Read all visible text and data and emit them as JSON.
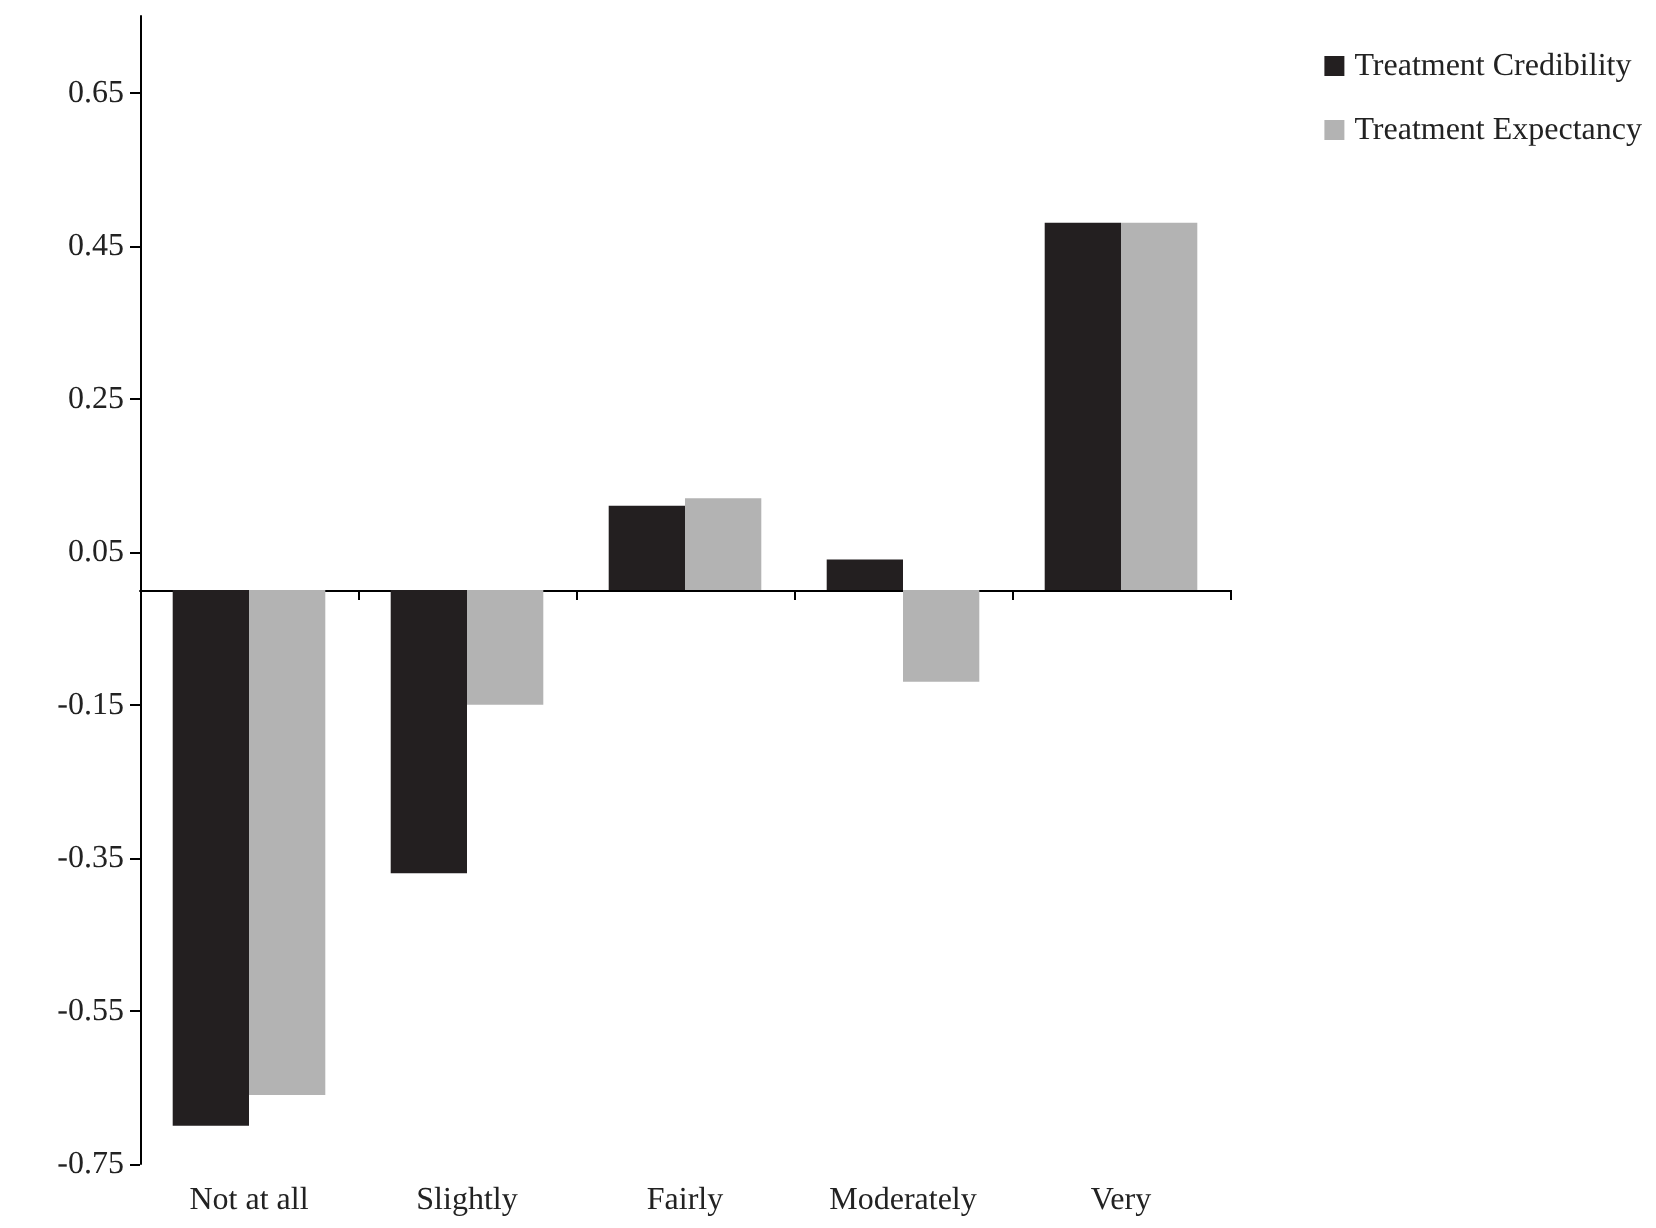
{
  "chart_data": {
    "type": "bar",
    "categories": [
      "Not at all",
      "Slightly",
      "Fairly",
      "Moderately",
      "Very"
    ],
    "series": [
      {
        "name": "Treatment Credibility",
        "color": "#231f20",
        "values": [
          -0.7,
          -0.37,
          0.11,
          0.04,
          0.48
        ]
      },
      {
        "name": "Treatment Expectancy",
        "color": "#b3b3b3",
        "values": [
          -0.66,
          -0.15,
          0.12,
          -0.12,
          0.48
        ]
      }
    ],
    "ylim": [
      -0.75,
      0.75
    ],
    "yticks": [
      -0.75,
      -0.55,
      -0.35,
      -0.15,
      0.05,
      0.25,
      0.45,
      0.65
    ],
    "grid": false,
    "legend": "top right"
  }
}
